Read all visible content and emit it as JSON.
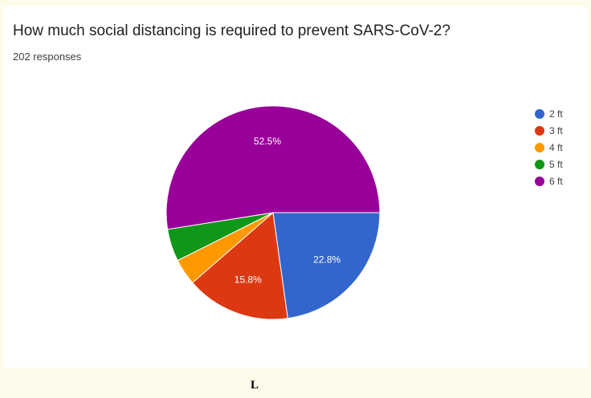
{
  "chart_data": {
    "type": "pie",
    "title": "How much social distancing is required to prevent SARS-CoV-2?",
    "subtitle": "202 responses",
    "categories": [
      "2 ft",
      "3 ft",
      "4 ft",
      "5 ft",
      "6 ft"
    ],
    "values": [
      22.8,
      15.8,
      4.0,
      4.9,
      52.5
    ],
    "data_labels": [
      "22.8%",
      "15.8%",
      "",
      "",
      "52.5%"
    ],
    "colors": [
      "#3366cc",
      "#dc3912",
      "#ff9900",
      "#109618",
      "#990099"
    ],
    "start_angle_deg": 90,
    "direction": "clockwise",
    "legend_position": "right"
  },
  "footer": {
    "letter": "L"
  }
}
